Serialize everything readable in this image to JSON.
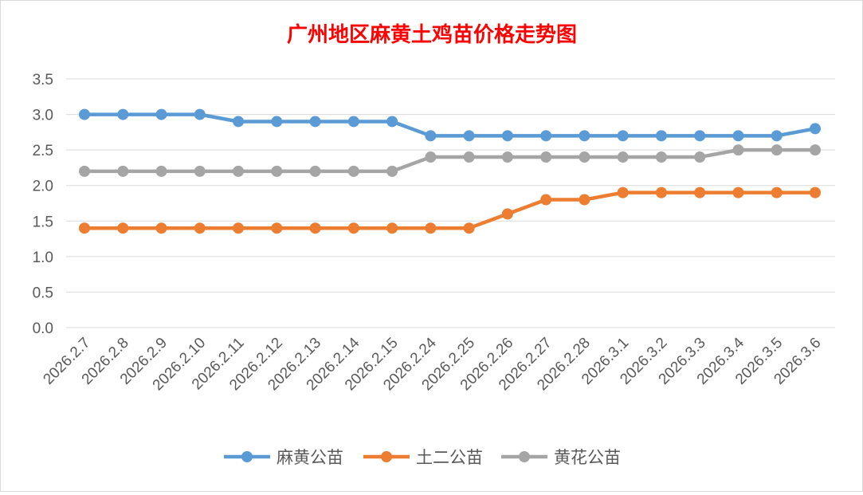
{
  "chart_data": {
    "type": "line",
    "title": "广州地区麻黄土鸡苗价格走势图",
    "title_color": "#ff0000",
    "categories": [
      "2026.2.7",
      "2026.2.8",
      "2026.2.9",
      "2026.2.10",
      "2026.2.11",
      "2026.2.12",
      "2026.2.13",
      "2026.2.14",
      "2026.2.15",
      "2026.2.24",
      "2026.2.25",
      "2026.2.26",
      "2026.2.27",
      "2026.2.28",
      "2026.3.1",
      "2026.3.2",
      "2026.3.3",
      "2026.3.4",
      "2026.3.5",
      "2026.3.6"
    ],
    "series": [
      {
        "name": "麻黄公苗",
        "color": "#5b9bd5",
        "values": [
          3.0,
          3.0,
          3.0,
          3.0,
          2.9,
          2.9,
          2.9,
          2.9,
          2.9,
          2.7,
          2.7,
          2.7,
          2.7,
          2.7,
          2.7,
          2.7,
          2.7,
          2.7,
          2.7,
          2.8
        ]
      },
      {
        "name": "土二公苗",
        "color": "#ed7d31",
        "values": [
          1.4,
          1.4,
          1.4,
          1.4,
          1.4,
          1.4,
          1.4,
          1.4,
          1.4,
          1.4,
          1.4,
          1.6,
          1.8,
          1.8,
          1.9,
          1.9,
          1.9,
          1.9,
          1.9,
          1.9
        ]
      },
      {
        "name": "黄花公苗",
        "color": "#a5a5a5",
        "values": [
          2.2,
          2.2,
          2.2,
          2.2,
          2.2,
          2.2,
          2.2,
          2.2,
          2.2,
          2.4,
          2.4,
          2.4,
          2.4,
          2.4,
          2.4,
          2.4,
          2.4,
          2.5,
          2.5,
          2.5
        ]
      }
    ],
    "yticks": [
      "0.0",
      "0.5",
      "1.0",
      "1.5",
      "2.0",
      "2.5",
      "3.0",
      "3.5"
    ],
    "ylim": [
      0,
      3.5
    ],
    "grid": true,
    "legend": "bottom"
  }
}
